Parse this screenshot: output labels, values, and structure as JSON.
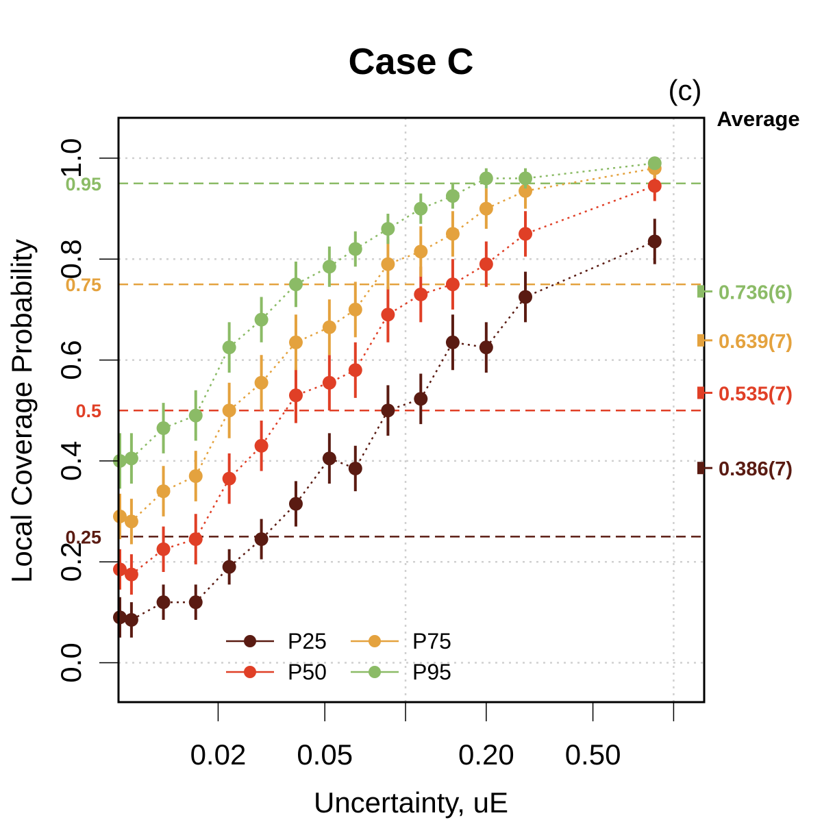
{
  "chart_data": {
    "type": "scatter",
    "title": "Case C",
    "panel_label": "(c)",
    "xlabel": "Uncertainty, uE",
    "ylabel": "Local Coverage Probability",
    "x_scale": "log",
    "xlim": [
      0.0085,
      1.3
    ],
    "ylim": [
      -0.078,
      1.08
    ],
    "x_gridlines": [
      0.1,
      1.0
    ],
    "y_gridlines": [
      0.0,
      0.2,
      0.4,
      0.6,
      0.8,
      1.0
    ],
    "xticks": [
      {
        "value": 0.02,
        "label": "0.02"
      },
      {
        "value": 0.05,
        "label": "0.05"
      },
      {
        "value": 0.1,
        "label": ""
      },
      {
        "value": 0.2,
        "label": "0.20"
      },
      {
        "value": 0.5,
        "label": "0.50"
      },
      {
        "value": 1.0,
        "label": ""
      }
    ],
    "yticks": [
      {
        "value": 0.0,
        "label": "0.0"
      },
      {
        "value": 0.2,
        "label": "0.2"
      },
      {
        "value": 0.4,
        "label": "0.4"
      },
      {
        "value": 0.6,
        "label": "0.6"
      },
      {
        "value": 0.8,
        "label": "0.8"
      },
      {
        "value": 1.0,
        "label": "1.0"
      }
    ],
    "x": [
      0.0086,
      0.0095,
      0.0125,
      0.0165,
      0.022,
      0.029,
      0.039,
      0.052,
      0.065,
      0.086,
      0.114,
      0.15,
      0.2,
      0.28,
      0.85
    ],
    "series": [
      {
        "name": "P25",
        "color": "#5a1b12",
        "target": 0.25,
        "target_label": "0.25",
        "average": 0.386,
        "average_label": "0.386(7)",
        "values": [
          0.09,
          0.085,
          0.12,
          0.12,
          0.19,
          0.245,
          0.315,
          0.405,
          0.385,
          0.5,
          0.523,
          0.635,
          0.625,
          0.725,
          0.835
        ],
        "err_low": [
          0.04,
          0.035,
          0.035,
          0.035,
          0.035,
          0.04,
          0.045,
          0.05,
          0.045,
          0.05,
          0.05,
          0.055,
          0.05,
          0.05,
          0.045
        ],
        "err_high": [
          0.04,
          0.035,
          0.035,
          0.035,
          0.035,
          0.04,
          0.045,
          0.05,
          0.045,
          0.05,
          0.05,
          0.055,
          0.05,
          0.05,
          0.045
        ]
      },
      {
        "name": "P50",
        "color": "#e03f26",
        "target": 0.5,
        "target_label": "0.5",
        "average": 0.535,
        "average_label": "0.535(7)",
        "values": [
          0.185,
          0.175,
          0.225,
          0.245,
          0.365,
          0.43,
          0.53,
          0.555,
          0.58,
          0.69,
          0.73,
          0.75,
          0.79,
          0.85,
          0.945
        ],
        "err_low": [
          0.04,
          0.04,
          0.045,
          0.05,
          0.05,
          0.05,
          0.055,
          0.055,
          0.055,
          0.055,
          0.055,
          0.05,
          0.045,
          0.045,
          0.03
        ],
        "err_high": [
          0.04,
          0.04,
          0.045,
          0.05,
          0.05,
          0.05,
          0.055,
          0.055,
          0.055,
          0.055,
          0.055,
          0.05,
          0.045,
          0.045,
          0.03
        ]
      },
      {
        "name": "P75",
        "color": "#e4a23e",
        "target": 0.75,
        "target_label": "0.75",
        "average": 0.639,
        "average_label": "0.639(7)",
        "values": [
          0.29,
          0.28,
          0.34,
          0.37,
          0.5,
          0.555,
          0.635,
          0.665,
          0.7,
          0.79,
          0.815,
          0.85,
          0.9,
          0.935,
          0.98
        ],
        "err_low": [
          0.045,
          0.045,
          0.05,
          0.05,
          0.055,
          0.055,
          0.055,
          0.055,
          0.055,
          0.05,
          0.05,
          0.045,
          0.04,
          0.035,
          0.02
        ],
        "err_high": [
          0.045,
          0.045,
          0.05,
          0.05,
          0.055,
          0.055,
          0.055,
          0.055,
          0.055,
          0.05,
          0.05,
          0.045,
          0.04,
          0.035,
          0.02
        ]
      },
      {
        "name": "P95",
        "color": "#8bbb66",
        "target": 0.95,
        "target_label": "0.95",
        "average": 0.736,
        "average_label": "0.736(6)",
        "values": [
          0.4,
          0.405,
          0.465,
          0.49,
          0.625,
          0.68,
          0.75,
          0.785,
          0.82,
          0.86,
          0.9,
          0.925,
          0.96,
          0.96,
          0.99
        ],
        "err_low": [
          0.055,
          0.05,
          0.05,
          0.05,
          0.05,
          0.045,
          0.045,
          0.04,
          0.035,
          0.03,
          0.03,
          0.025,
          0.02,
          0.02,
          0.01
        ],
        "err_high": [
          0.055,
          0.05,
          0.05,
          0.05,
          0.05,
          0.045,
          0.045,
          0.04,
          0.035,
          0.03,
          0.03,
          0.025,
          0.02,
          0.02,
          0.01
        ]
      }
    ],
    "average_header": "Average",
    "legend": {
      "position": "bottom-left",
      "entries": [
        "P25",
        "P75",
        "P50",
        "P95"
      ]
    }
  }
}
